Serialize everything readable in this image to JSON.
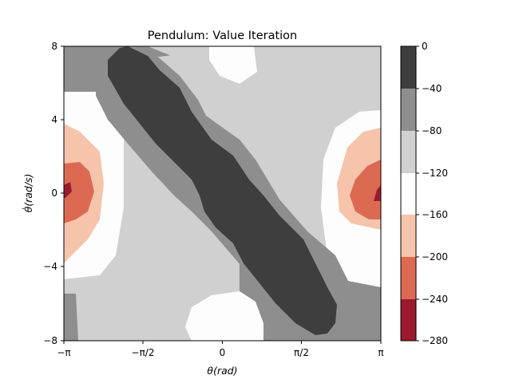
{
  "chart_data": {
    "type": "heatmap",
    "subtype": "filled-contour",
    "title": "Pendulum: Value Iteration",
    "xlabel": "θ(rad)",
    "ylabel": "θ̇(rad/s)",
    "x_ticks": [
      "−π",
      "−π/2",
      "0",
      "π/2",
      "π"
    ],
    "x_tick_values": [
      -3.1416,
      -1.5708,
      0,
      1.5708,
      3.1416
    ],
    "y_ticks": [
      "8",
      "4",
      "0",
      "−4",
      "−8"
    ],
    "y_tick_values": [
      8,
      4,
      0,
      -4,
      -8
    ],
    "xlim": [
      -3.1416,
      3.1416
    ],
    "ylim": [
      -8,
      8
    ],
    "colorbar": {
      "levels": [
        -280,
        -240,
        -200,
        -160,
        -120,
        -80,
        -40,
        0
      ],
      "tick_labels": [
        "0",
        "−40",
        "−80",
        "−120",
        "−160",
        "−200",
        "−240",
        "−280"
      ],
      "colors": [
        "#9b1a2e",
        "#dc6a53",
        "#f6c4aa",
        "#fdfdfd",
        "#d0d0d0",
        "#8e8e8e",
        "#3e3e3e"
      ]
    },
    "regions": [
      {
        "band": [
          -40,
          0
        ],
        "description": "diagonal stripe from top-left (θ≈−2.2, θ̇=8) to bottom-right (θ≈2.2, θ̇=−8) through origin"
      },
      {
        "band": [
          -280,
          -240
        ],
        "description": "small spots at θ=±π, θ̇=0"
      }
    ]
  },
  "colors": {
    "band_0": "#3e3e3e",
    "band_1": "#8e8e8e",
    "band_2": "#d0d0d0",
    "band_3": "#fdfdfd",
    "band_4": "#f6c4aa",
    "band_5": "#dc6a53",
    "band_6": "#9b1a2e"
  }
}
